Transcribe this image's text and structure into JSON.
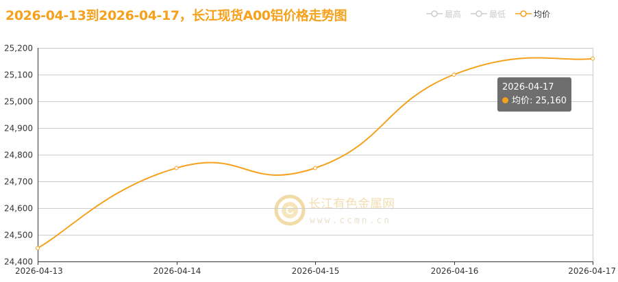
{
  "title": "2026-04-13到2026-04-17，长江现货A00铝价格走势图",
  "legend": [
    {
      "name": "最高",
      "active": false
    },
    {
      "name": "最低",
      "active": false
    },
    {
      "name": "均价",
      "active": true
    }
  ],
  "tooltip": {
    "date": "2026-04-17",
    "series": "均价",
    "value": "25,160"
  },
  "watermark": {
    "name": "长江有色金属网",
    "url": "www.ccmn.cn"
  },
  "colors": {
    "series": "#f5a11c",
    "inactive": "#cccccc",
    "grid": "#cccccc",
    "axis": "#333333",
    "title": "#f5a11c"
  },
  "chart_data": {
    "type": "line",
    "categories": [
      "2026-04-13",
      "2026-04-14",
      "2026-04-15",
      "2026-04-16",
      "2026-04-17"
    ],
    "series": [
      {
        "name": "均价",
        "values": [
          24450,
          24750,
          24750,
          25100,
          25160
        ]
      }
    ],
    "ylim": [
      24400,
      25200
    ],
    "yticks": [
      24400,
      24500,
      24600,
      24700,
      24800,
      24900,
      25000,
      25100,
      25200
    ],
    "ytick_labels": [
      "24,400",
      "24,500",
      "24,600",
      "24,700",
      "24,800",
      "24,900",
      "25,000",
      "25,100",
      "25,200"
    ],
    "grid": true,
    "smooth": true,
    "legend_position": "top-right"
  }
}
